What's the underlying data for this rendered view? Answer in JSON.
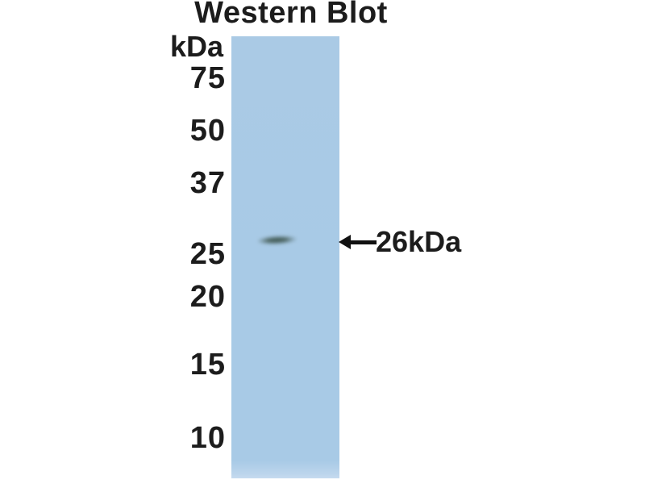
{
  "figure": {
    "title": "Western Blot",
    "unit_label": "kDa",
    "band_label": "26kDa",
    "markers": [
      {
        "label": "75"
      },
      {
        "label": "50"
      },
      {
        "label": "37"
      },
      {
        "label": "25"
      },
      {
        "label": "20"
      },
      {
        "label": "15"
      },
      {
        "label": "10"
      }
    ],
    "icons": {
      "band_pointer": "arrow-left-icon"
    },
    "colors": {
      "background": "#ffffff",
      "lane": "#a8cae6",
      "lane_bottom_edge": "#bcd5ec",
      "band": "#4d6663",
      "text": "#1c1c1c",
      "arrow": "#111111"
    }
  }
}
